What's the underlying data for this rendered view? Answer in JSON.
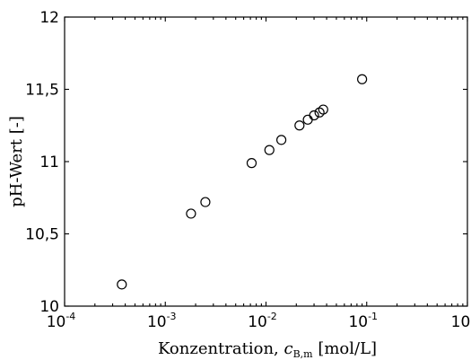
{
  "chart_data": {
    "type": "scatter",
    "title": "",
    "xlabel": {
      "text": "Konzentration, ",
      "symbol": "c",
      "subscript": "B,m",
      "unit": " [mol/L]"
    },
    "ylabel": "pH-Wert [-]",
    "xscale": "log",
    "xlim": [
      0.0001,
      1
    ],
    "ylim": [
      10,
      12
    ],
    "grid": false,
    "x_ticks": [
      {
        "base": "10",
        "exp": "-4",
        "value": 0.0001
      },
      {
        "base": "10",
        "exp": "-3",
        "value": 0.001
      },
      {
        "base": "10",
        "exp": "-2",
        "value": 0.01
      },
      {
        "base": "10",
        "exp": "-1",
        "value": 0.1
      },
      {
        "base": "10",
        "exp": "0",
        "value": 1
      }
    ],
    "y_ticks": [
      {
        "label": "10",
        "value": 10
      },
      {
        "label": "10,5",
        "value": 10.5
      },
      {
        "label": "11",
        "value": 11
      },
      {
        "label": "11,5",
        "value": 11.5
      },
      {
        "label": "12",
        "value": 12
      }
    ],
    "series": [
      {
        "marker": "open-circle",
        "color": "#000000",
        "points": [
          {
            "x": 0.00037,
            "y": 10.15
          },
          {
            "x": 0.0018,
            "y": 10.64
          },
          {
            "x": 0.0025,
            "y": 10.72
          },
          {
            "x": 0.0072,
            "y": 10.99
          },
          {
            "x": 0.0108,
            "y": 11.08
          },
          {
            "x": 0.0142,
            "y": 11.15
          },
          {
            "x": 0.0215,
            "y": 11.25
          },
          {
            "x": 0.026,
            "y": 11.29
          },
          {
            "x": 0.03,
            "y": 11.32
          },
          {
            "x": 0.034,
            "y": 11.34
          },
          {
            "x": 0.037,
            "y": 11.36
          },
          {
            "x": 0.09,
            "y": 11.57
          }
        ]
      }
    ]
  }
}
